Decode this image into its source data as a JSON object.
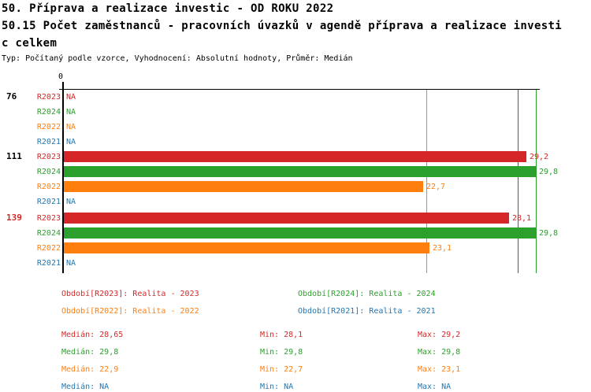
{
  "header": {
    "title_line1": "50. Příprava a realizace investic - OD ROKU 2022",
    "title_line2": "50.15 Počet zaměstnanců - pracovních úvazků v agendě příprava a realizace investi",
    "title_line3": "c celkem",
    "meta": "Typ: Počítaný podle vzorce, Vyhodnocení: Absolutní hodnoty, Průměr: Medián"
  },
  "colors": {
    "R2023": "#d62728",
    "R2024": "#2ca02c",
    "R2022": "#ff7f0e",
    "R2021": "#1f77b4",
    "axis": "#000000",
    "highlight_group_label": "#d62728",
    "normal_group_label": "#000000"
  },
  "chart_data": {
    "type": "bar",
    "orientation": "horizontal",
    "x_axis": {
      "tick_label": "0",
      "xlim": [
        0,
        33
      ],
      "grid": "median-lines-only"
    },
    "series_order": [
      "R2023",
      "R2024",
      "R2022",
      "R2021"
    ],
    "groups": [
      {
        "label": "76",
        "highlighted": false,
        "rows": [
          {
            "series": "R2023",
            "value": null,
            "display": "NA"
          },
          {
            "series": "R2024",
            "value": null,
            "display": "NA"
          },
          {
            "series": "R2022",
            "value": null,
            "display": "NA"
          },
          {
            "series": "R2021",
            "value": null,
            "display": "NA"
          }
        ]
      },
      {
        "label": "111",
        "highlighted": false,
        "rows": [
          {
            "series": "R2023",
            "value": 29.2,
            "display": "29,2"
          },
          {
            "series": "R2024",
            "value": 29.8,
            "display": "29,8"
          },
          {
            "series": "R2022",
            "value": 22.7,
            "display": "22,7"
          },
          {
            "series": "R2021",
            "value": null,
            "display": "NA"
          }
        ]
      },
      {
        "label": "139",
        "highlighted": true,
        "rows": [
          {
            "series": "R2023",
            "value": 28.1,
            "display": "28,1"
          },
          {
            "series": "R2024",
            "value": 29.8,
            "display": "29,8"
          },
          {
            "series": "R2022",
            "value": 23.1,
            "display": "23,1"
          },
          {
            "series": "R2021",
            "value": null,
            "display": "NA"
          }
        ]
      }
    ],
    "median_lines": [
      {
        "series": "R2022",
        "value": 22.9
      },
      {
        "series": "R2023",
        "value": 28.65
      },
      {
        "series": "R2024",
        "value": 29.8
      }
    ]
  },
  "legend": {
    "items": [
      {
        "series": "R2023",
        "label": "Období[R2023]: Realita - 2023"
      },
      {
        "series": "R2024",
        "label": "Období[R2024]: Realita - 2024"
      },
      {
        "series": "R2022",
        "label": "Období[R2022]: Realita - 2022"
      },
      {
        "series": "R2021",
        "label": "Období[R2021]: Realita - 2021"
      }
    ]
  },
  "stats": {
    "rows": [
      {
        "series": "R2023",
        "median": "Medián: 28,65",
        "min": "Min: 28,1",
        "max": "Max: 29,2"
      },
      {
        "series": "R2024",
        "median": "Medián: 29,8",
        "min": "Min: 29,8",
        "max": "Max: 29,8"
      },
      {
        "series": "R2022",
        "median": "Medián: 22,9",
        "min": "Min: 22,7",
        "max": "Max: 23,1"
      },
      {
        "series": "R2021",
        "median": "Medián: NA",
        "min": "Min: NA",
        "max": "Max: NA"
      }
    ]
  }
}
